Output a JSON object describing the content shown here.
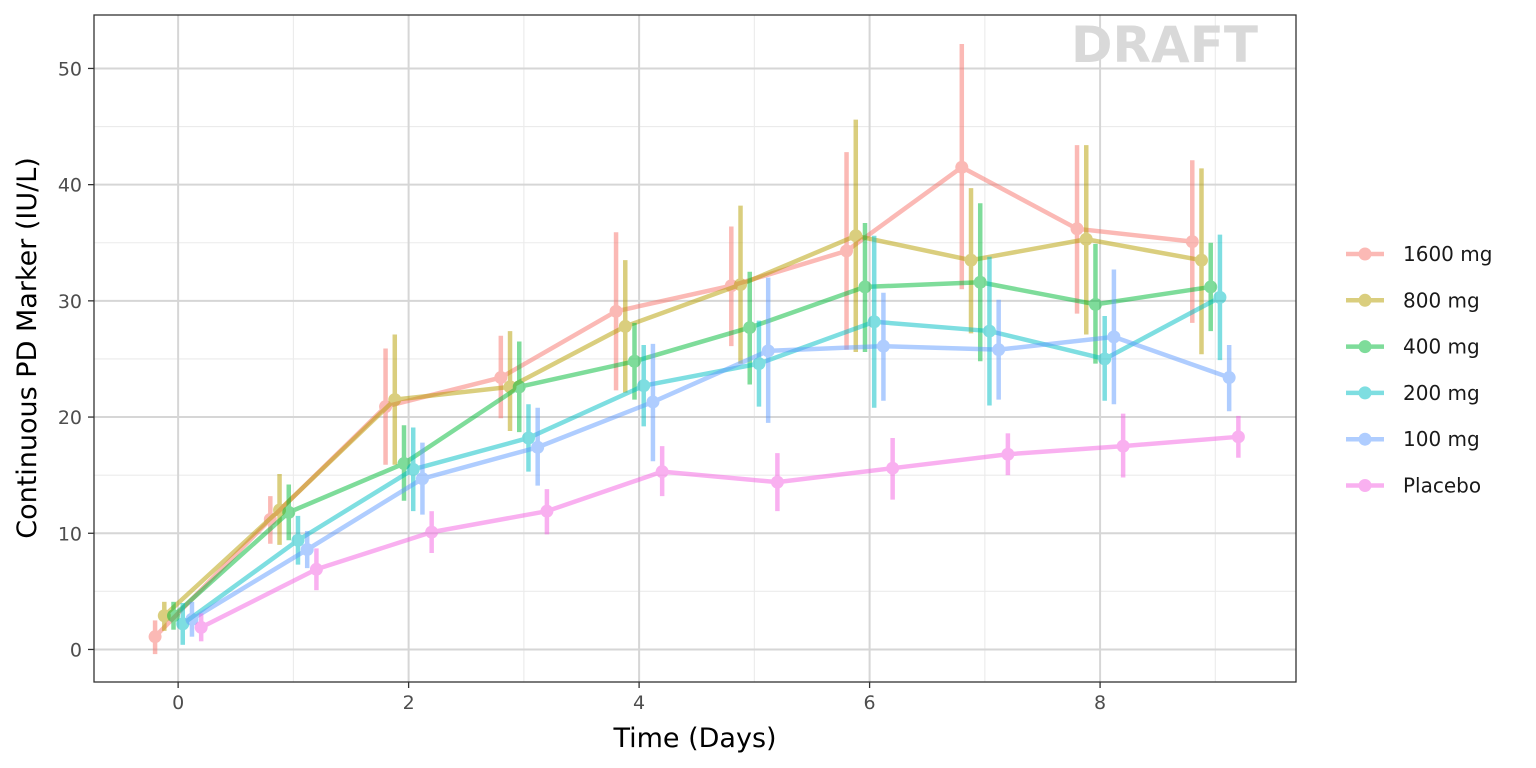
{
  "chart_data": {
    "type": "line",
    "title": "",
    "watermark": "DRAFT",
    "xlabel": "Time (Days)",
    "ylabel": "Continuous PD Marker (IU/L)",
    "xlim": [
      -0.73,
      9.7
    ],
    "ylim": [
      -2.8,
      54.6
    ],
    "x_ticks": [
      0,
      2,
      4,
      6,
      8
    ],
    "y_ticks": [
      0,
      10,
      20,
      30,
      40,
      50
    ],
    "grid": true,
    "legend_position": "right",
    "x": [
      0,
      1,
      2,
      3,
      4,
      5,
      6,
      7,
      8,
      9
    ],
    "series": [
      {
        "name": "1600 mg",
        "color": "#F8766D",
        "dodge": -0.2,
        "values": [
          1.1,
          11.2,
          20.9,
          23.4,
          29.1,
          31.3,
          34.3,
          41.5,
          36.2,
          35.1
        ],
        "lower": [
          -0.4,
          9.1,
          15.9,
          19.9,
          22.3,
          26.1,
          25.8,
          31.0,
          28.9,
          28.1
        ],
        "upper": [
          2.5,
          13.2,
          25.9,
          27.0,
          35.9,
          36.4,
          42.8,
          52.1,
          43.4,
          42.1
        ]
      },
      {
        "name": "800 mg",
        "color": "#B79F00",
        "dodge": -0.12,
        "values": [
          2.9,
          12.0,
          21.5,
          22.6,
          27.8,
          31.4,
          35.6,
          33.5,
          35.3,
          33.5
        ],
        "lower": [
          1.6,
          9.0,
          15.9,
          18.8,
          22.1,
          24.6,
          25.6,
          27.2,
          27.1,
          25.4
        ],
        "upper": [
          4.1,
          15.1,
          27.1,
          27.4,
          33.5,
          38.2,
          45.6,
          39.7,
          43.4,
          41.4
        ]
      },
      {
        "name": "400 mg",
        "color": "#00BA38",
        "dodge": -0.04,
        "values": [
          2.9,
          11.8,
          16.0,
          22.6,
          24.8,
          27.7,
          31.2,
          31.6,
          29.7,
          31.2
        ],
        "lower": [
          1.7,
          9.4,
          12.8,
          18.7,
          21.5,
          22.8,
          25.6,
          24.8,
          24.6,
          27.4
        ],
        "upper": [
          4.1,
          14.2,
          19.3,
          26.5,
          28.1,
          32.5,
          36.7,
          38.4,
          34.9,
          35.0
        ]
      },
      {
        "name": "200 mg",
        "color": "#00BFC4",
        "dodge": 0.04,
        "values": [
          2.2,
          9.4,
          15.5,
          18.2,
          22.7,
          24.6,
          28.2,
          27.4,
          25.0,
          30.3
        ],
        "lower": [
          0.4,
          7.3,
          11.9,
          15.3,
          19.2,
          20.9,
          20.8,
          21.0,
          21.4,
          24.9
        ],
        "upper": [
          4.0,
          11.5,
          19.1,
          21.1,
          26.2,
          28.3,
          35.6,
          33.8,
          28.7,
          35.7
        ]
      },
      {
        "name": "100 mg",
        "color": "#619CFF",
        "dodge": 0.12,
        "values": [
          2.6,
          8.6,
          14.7,
          17.4,
          21.3,
          25.7,
          26.1,
          25.8,
          26.9,
          23.4
        ],
        "lower": [
          1.1,
          7.0,
          11.6,
          14.1,
          16.2,
          19.5,
          21.4,
          21.5,
          21.1,
          20.5
        ],
        "upper": [
          4.1,
          10.2,
          17.8,
          20.8,
          26.3,
          32.0,
          30.7,
          30.1,
          32.7,
          26.2
        ]
      },
      {
        "name": "Placebo",
        "color": "#F564E3",
        "dodge": 0.2,
        "values": [
          1.9,
          6.9,
          10.1,
          11.9,
          15.3,
          14.4,
          15.6,
          16.8,
          17.5,
          18.3
        ],
        "lower": [
          0.7,
          5.1,
          8.3,
          9.9,
          13.2,
          11.9,
          12.9,
          15.0,
          14.8,
          16.5
        ],
        "upper": [
          3.1,
          8.7,
          11.9,
          13.8,
          17.5,
          16.9,
          18.2,
          18.6,
          20.3,
          20.1
        ]
      }
    ]
  }
}
